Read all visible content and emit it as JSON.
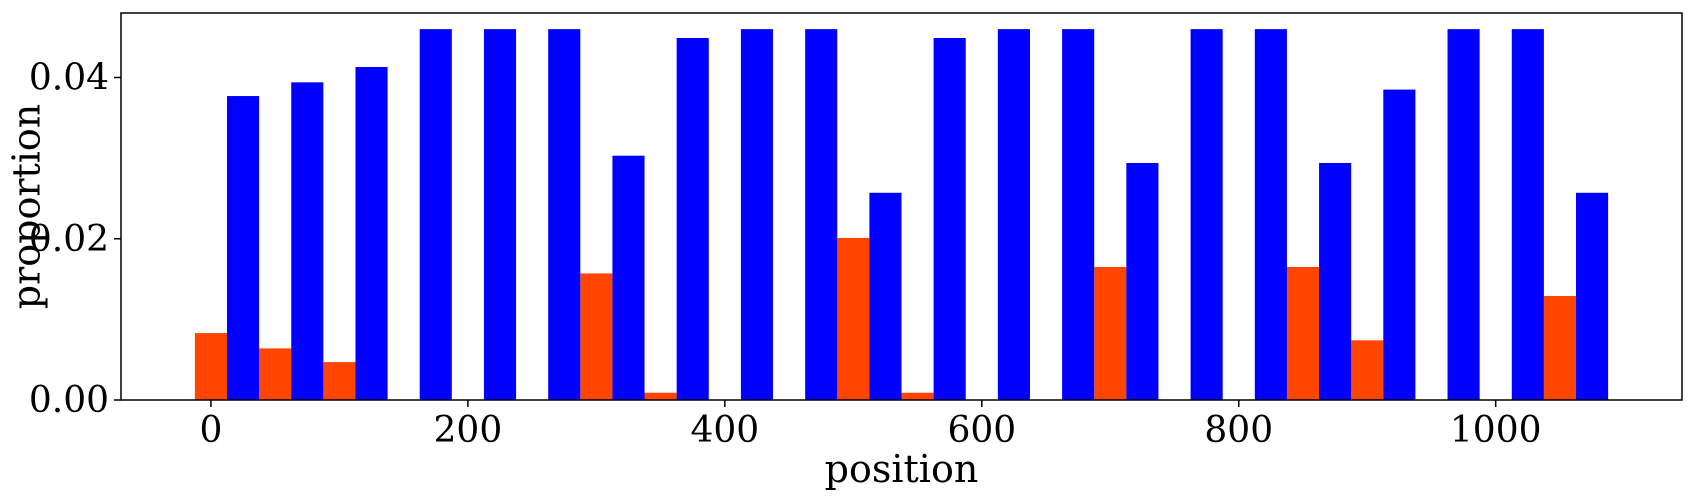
{
  "chart_data": {
    "type": "bar",
    "title": "",
    "xlabel": "position",
    "ylabel": "proportion",
    "xlim": [
      -70,
      1145
    ],
    "ylim": [
      0,
      0.048
    ],
    "x_ticks": [
      0,
      200,
      400,
      600,
      800,
      1000
    ],
    "x_tick_labels": [
      "0",
      "200",
      "400",
      "600",
      "800",
      "1000"
    ],
    "y_ticks": [
      0.0,
      0.02,
      0.04
    ],
    "y_tick_labels": [
      "0.00",
      "0.02",
      "0.04"
    ],
    "grid": false,
    "bar_width": 25,
    "series": [
      {
        "color": "#ff4500",
        "x": [
          0,
          50,
          100,
          150,
          200,
          250,
          300,
          350,
          400,
          450,
          500,
          550,
          600,
          650,
          700,
          750,
          800,
          850,
          900,
          950,
          1000,
          1050
        ],
        "values": [
          0.0083,
          0.0064,
          0.0047,
          0,
          0,
          0,
          0.0157,
          0.0009,
          0,
          0,
          0.0201,
          0.0009,
          0,
          0,
          0.0165,
          0,
          0,
          0.0165,
          0.0074,
          0,
          0,
          0.0129
        ]
      },
      {
        "color": "#0000ff",
        "x": [
          25,
          75,
          125,
          175,
          225,
          275,
          325,
          375,
          425,
          475,
          525,
          575,
          625,
          675,
          725,
          775,
          825,
          875,
          925,
          975,
          1025,
          1075
        ],
        "values": [
          0.0377,
          0.0394,
          0.0413,
          0.046,
          0.046,
          0.046,
          0.0303,
          0.0449,
          0.046,
          0.046,
          0.0257,
          0.0449,
          0.046,
          0.046,
          0.0294,
          0.046,
          0.046,
          0.0294,
          0.0385,
          0.046,
          0.046,
          0.0257
        ]
      }
    ]
  }
}
